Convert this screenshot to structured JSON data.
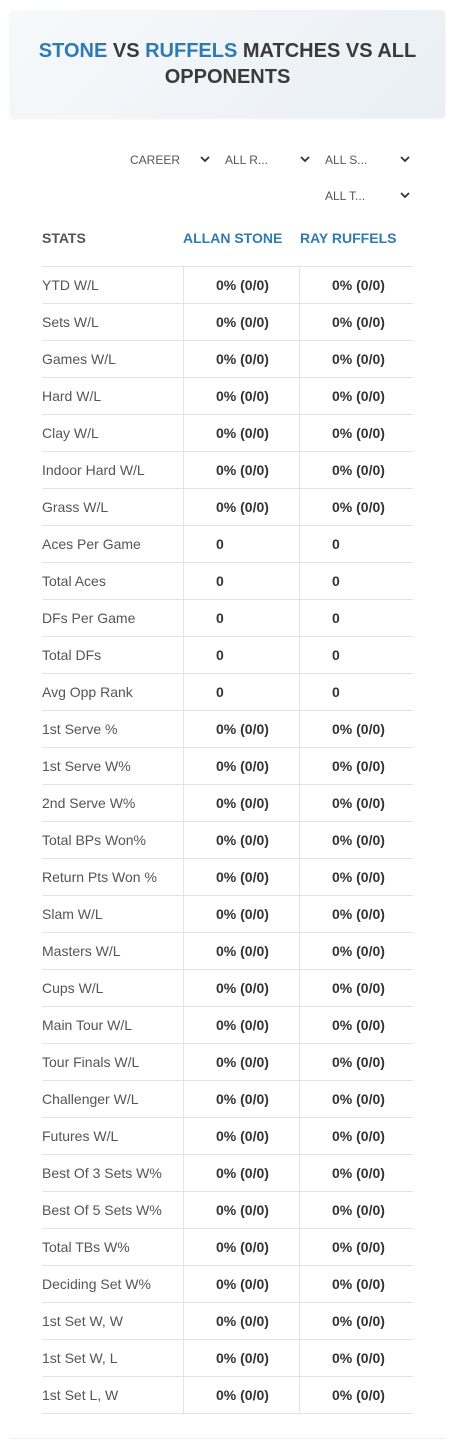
{
  "header": {
    "title": [
      "STONE",
      "VS",
      "RUFFELS",
      "MATCHES VS ALL OPPONENTS"
    ]
  },
  "filters": [
    "CAREER",
    "ALL R...",
    "ALL S...",
    "ALL T..."
  ],
  "table": {
    "columns": [
      "STATS",
      "ALLAN STONE",
      "RAY RUFFELS"
    ],
    "rows": [
      [
        "YTD W/L",
        "0% (0/0)",
        "0% (0/0)"
      ],
      [
        "Sets W/L",
        "0% (0/0)",
        "0% (0/0)"
      ],
      [
        "Games W/L",
        "0% (0/0)",
        "0% (0/0)"
      ],
      [
        "Hard W/L",
        "0% (0/0)",
        "0% (0/0)"
      ],
      [
        "Clay W/L",
        "0% (0/0)",
        "0% (0/0)"
      ],
      [
        "Indoor Hard W/L",
        "0% (0/0)",
        "0% (0/0)"
      ],
      [
        "Grass W/L",
        "0% (0/0)",
        "0% (0/0)"
      ],
      [
        "Aces Per Game",
        "0",
        "0"
      ],
      [
        "Total Aces",
        "0",
        "0"
      ],
      [
        "DFs Per Game",
        "0",
        "0"
      ],
      [
        "Total DFs",
        "0",
        "0"
      ],
      [
        "Avg Opp Rank",
        "0",
        "0"
      ],
      [
        "1st Serve %",
        "0% (0/0)",
        "0% (0/0)"
      ],
      [
        "1st Serve W%",
        "0% (0/0)",
        "0% (0/0)"
      ],
      [
        "2nd Serve W%",
        "0% (0/0)",
        "0% (0/0)"
      ],
      [
        "Total BPs Won%",
        "0% (0/0)",
        "0% (0/0)"
      ],
      [
        "Return Pts Won %",
        "0% (0/0)",
        "0% (0/0)"
      ],
      [
        "Slam W/L",
        "0% (0/0)",
        "0% (0/0)"
      ],
      [
        "Masters W/L",
        "0% (0/0)",
        "0% (0/0)"
      ],
      [
        "Cups W/L",
        "0% (0/0)",
        "0% (0/0)"
      ],
      [
        "Main Tour W/L",
        "0% (0/0)",
        "0% (0/0)"
      ],
      [
        "Tour Finals W/L",
        "0% (0/0)",
        "0% (0/0)"
      ],
      [
        "Challenger W/L",
        "0% (0/0)",
        "0% (0/0)"
      ],
      [
        "Futures W/L",
        "0% (0/0)",
        "0% (0/0)"
      ],
      [
        "Best Of 3 Sets W%",
        "0% (0/0)",
        "0% (0/0)"
      ],
      [
        "Best Of 5 Sets W%",
        "0% (0/0)",
        "0% (0/0)"
      ],
      [
        "Total TBs W%",
        "0% (0/0)",
        "0% (0/0)"
      ],
      [
        "Deciding Set W%",
        "0% (0/0)",
        "0% (0/0)"
      ],
      [
        "1st Set W, W",
        "0% (0/0)",
        "0% (0/0)"
      ],
      [
        "1st Set W, L",
        "0% (0/0)",
        "0% (0/0)"
      ],
      [
        "1st Set L, W",
        "0% (0/0)",
        "0% (0/0)"
      ]
    ]
  }
}
